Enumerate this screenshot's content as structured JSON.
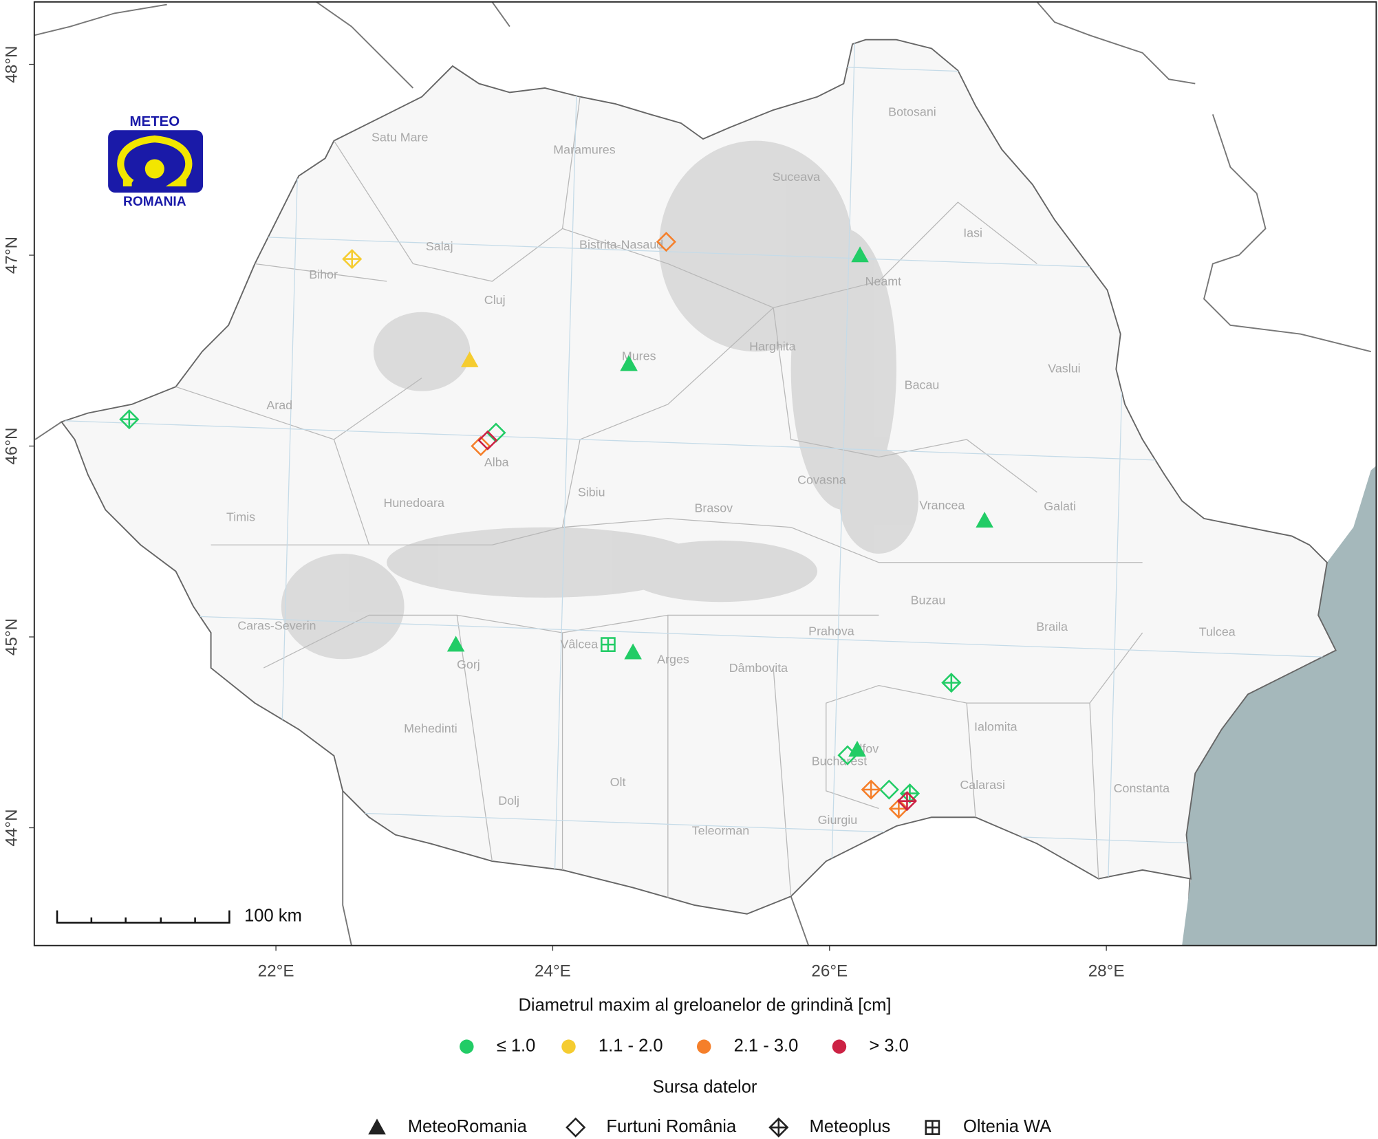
{
  "chart_data": {
    "type": "map",
    "logo": {
      "top": "METEO",
      "bottom": "ROMANIA"
    },
    "xlim": [
      20.254,
      29.95
    ],
    "ylim": [
      43.383,
      48.327
    ],
    "xticks": [
      {
        "value": 22,
        "label": "22°E"
      },
      {
        "value": 24,
        "label": "24°E"
      },
      {
        "value": 26,
        "label": "26°E"
      },
      {
        "value": 28,
        "label": "28°E"
      }
    ],
    "yticks": [
      {
        "value": 44,
        "label": "44°N"
      },
      {
        "value": 45,
        "label": "45°N"
      },
      {
        "value": 46,
        "label": "46°N"
      },
      {
        "value": 47,
        "label": "47°N"
      },
      {
        "value": 48,
        "label": "48°N"
      }
    ],
    "grid": true,
    "counties": [
      "Satu Mare",
      "Maramures",
      "Botosani",
      "Suceava",
      "Salaj",
      "Bistrita-Nasaud",
      "Iasi",
      "Bihor",
      "Cluj",
      "Neamt",
      "Mures",
      "Harghita",
      "Vaslui",
      "Arad",
      "Bacau",
      "Alba",
      "Sibiu",
      "Covasna",
      "Timis",
      "Hunedoara",
      "Brasov",
      "Vrancea",
      "Galati",
      "Buzau",
      "Braila",
      "Caras-Severin",
      "Prahova",
      "Tulcea",
      "Vâlcea",
      "Arges",
      "Gorj",
      "Dâmbovita",
      "Mehedinti",
      "Ialomita",
      "Ilfov",
      "Bucharest",
      "Calarasi",
      "Constanta",
      "Olt",
      "Dolj",
      "Teleorman",
      "Giurgiu"
    ],
    "scale_bar": "100 km",
    "size_legend_title": "Diametrul maxim al greloanelor de grindină [cm]",
    "size_classes": [
      {
        "label": "≤ 1.0",
        "color": "#22cc66"
      },
      {
        "label": "1.1 - 2.0",
        "color": "#f5cc30"
      },
      {
        "label": "2.1 - 3.0",
        "color": "#f57f2a"
      },
      {
        "label": "> 3.0",
        "color": "#cc2244"
      }
    ],
    "source_legend_title": "Sursa datelor",
    "sources": [
      {
        "label": "MeteoRomania",
        "shape": "triangle"
      },
      {
        "label": "Furtuni România",
        "shape": "diamond"
      },
      {
        "label": "Meteoplus",
        "shape": "diamond-plus"
      },
      {
        "label": "Oltenia WA",
        "shape": "square-plus"
      }
    ],
    "points": [
      {
        "lon": 26.22,
        "lat": 47.0,
        "class": "≤ 1.0",
        "source": "MeteoRomania"
      },
      {
        "lon": 24.55,
        "lat": 46.43,
        "class": "≤ 1.0",
        "source": "MeteoRomania"
      },
      {
        "lon": 27.12,
        "lat": 45.61,
        "class": "≤ 1.0",
        "source": "MeteoRomania"
      },
      {
        "lon": 23.3,
        "lat": 44.96,
        "class": "≤ 1.0",
        "source": "MeteoRomania"
      },
      {
        "lon": 24.58,
        "lat": 44.92,
        "class": "≤ 1.0",
        "source": "MeteoRomania"
      },
      {
        "lon": 26.2,
        "lat": 44.41,
        "class": "≤ 1.0",
        "source": "MeteoRomania"
      },
      {
        "lon": 23.4,
        "lat": 46.45,
        "class": "1.1 - 2.0",
        "source": "MeteoRomania"
      },
      {
        "lon": 23.59,
        "lat": 46.07,
        "class": "≤ 1.0",
        "source": "Furtuni România"
      },
      {
        "lon": 26.13,
        "lat": 44.38,
        "class": "≤ 1.0",
        "source": "Furtuni România"
      },
      {
        "lon": 26.43,
        "lat": 44.2,
        "class": "≤ 1.0",
        "source": "Furtuni România"
      },
      {
        "lon": 24.82,
        "lat": 47.07,
        "class": "2.1 - 3.0",
        "source": "Furtuni România"
      },
      {
        "lon": 23.48,
        "lat": 46.0,
        "class": "2.1 - 3.0",
        "source": "Furtuni România"
      },
      {
        "lon": 23.53,
        "lat": 46.03,
        "class": "> 3.0",
        "source": "Furtuni România"
      },
      {
        "lon": 20.94,
        "lat": 46.14,
        "class": "≤ 1.0",
        "source": "Meteoplus"
      },
      {
        "lon": 22.55,
        "lat": 46.98,
        "class": "1.1 - 2.0",
        "source": "Meteoplus"
      },
      {
        "lon": 26.88,
        "lat": 44.76,
        "class": "≤ 1.0",
        "source": "Meteoplus"
      },
      {
        "lon": 26.3,
        "lat": 44.2,
        "class": "2.1 - 3.0",
        "source": "Meteoplus"
      },
      {
        "lon": 26.5,
        "lat": 44.1,
        "class": "2.1 - 3.0",
        "source": "Meteoplus"
      },
      {
        "lon": 26.58,
        "lat": 44.18,
        "class": "≤ 1.0",
        "source": "Meteoplus"
      },
      {
        "lon": 26.56,
        "lat": 44.14,
        "class": "> 3.0",
        "source": "Meteoplus"
      },
      {
        "lon": 24.4,
        "lat": 44.96,
        "class": "≤ 1.0",
        "source": "Oltenia WA"
      }
    ]
  }
}
